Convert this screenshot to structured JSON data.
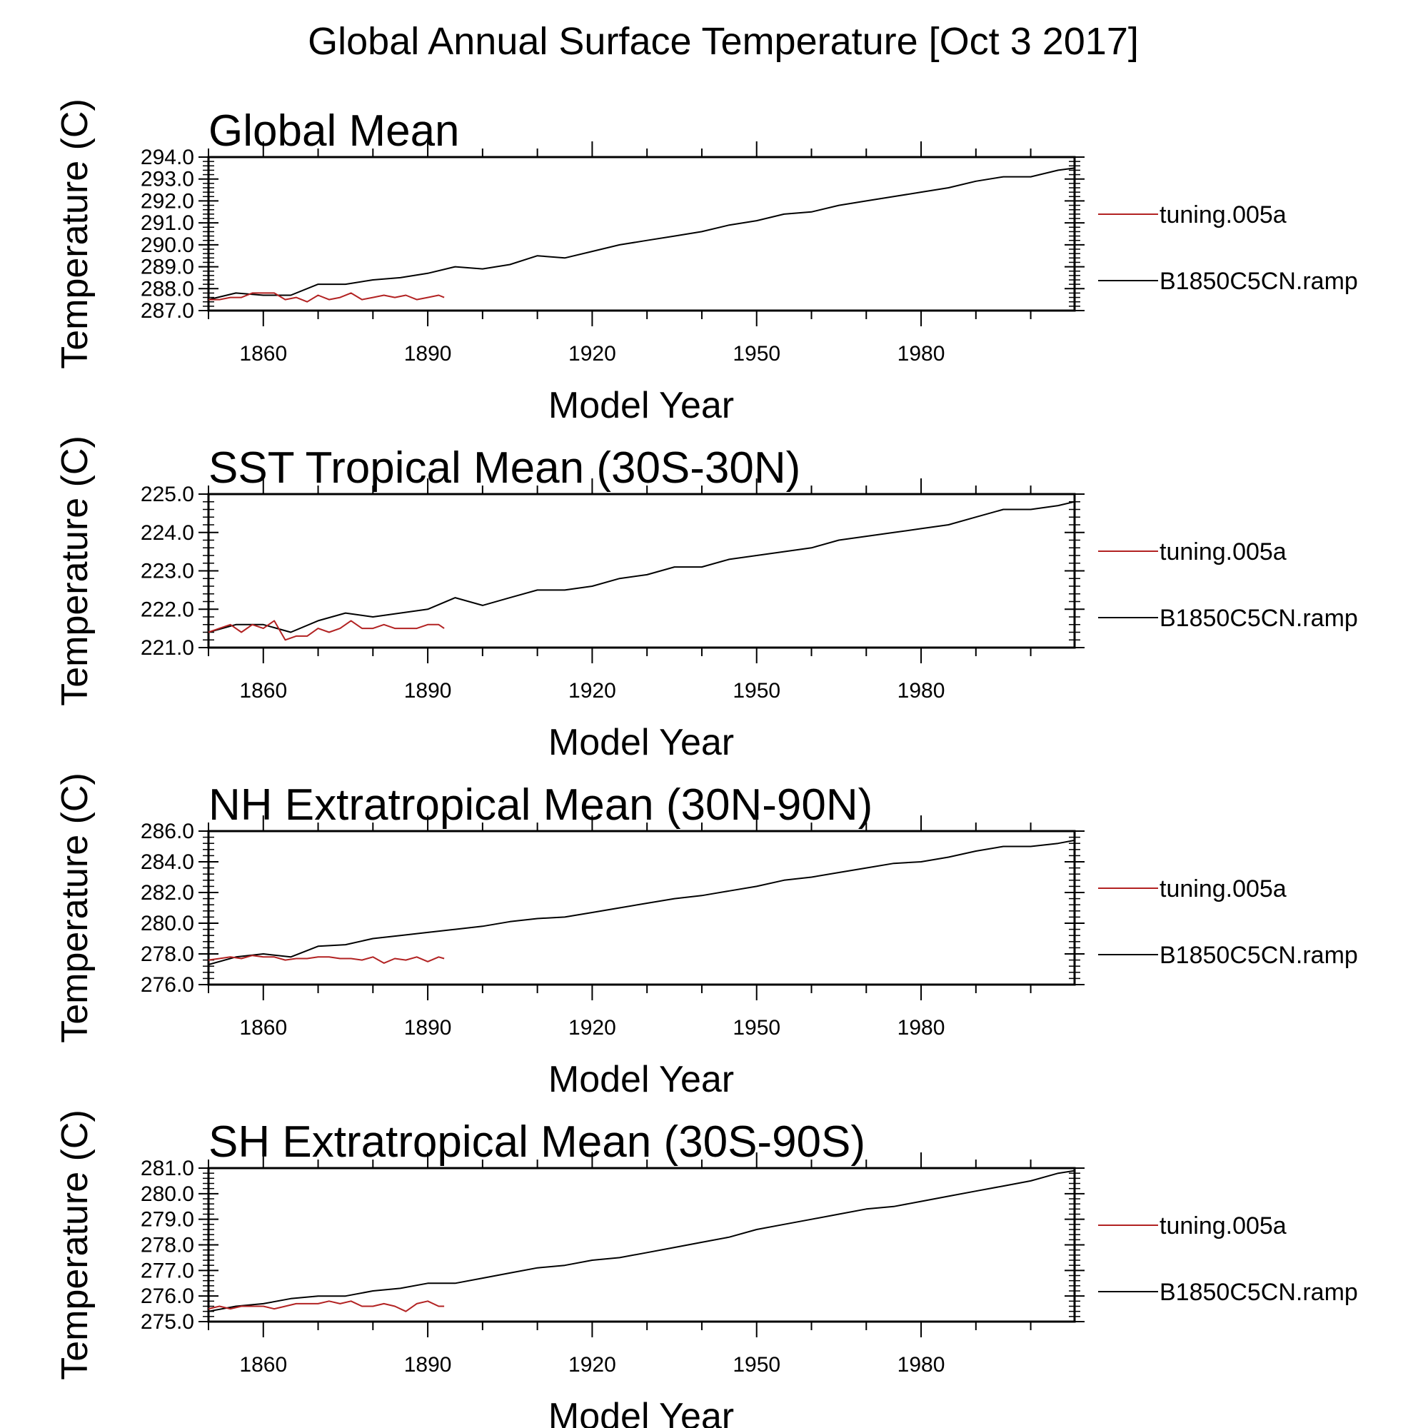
{
  "page_title": "Global Annual Surface Temperature [Oct  3 2017]",
  "colors": {
    "tuning.005a": "#b22222",
    "B1850C5CN.ramp": "#000000"
  },
  "chart_data": [
    {
      "type": "line",
      "title": "Global Mean",
      "xlabel": "Model Year",
      "ylabel": "Temperature (C)",
      "xlim": [
        1850,
        2008
      ],
      "ylim": [
        287.0,
        294.0
      ],
      "xticks": [
        1860,
        1890,
        1920,
        1950,
        1980
      ],
      "yticks": [
        "287.0",
        "288.0",
        "289.0",
        "290.0",
        "291.0",
        "292.0",
        "293.0",
        "294.0"
      ],
      "legend_position": "right",
      "series": [
        {
          "name": "tuning.005a",
          "x": [
            1850,
            1852,
            1854,
            1856,
            1858,
            1860,
            1862,
            1864,
            1866,
            1868,
            1870,
            1872,
            1874,
            1876,
            1878,
            1880,
            1882,
            1884,
            1886,
            1888,
            1890,
            1892,
            1893
          ],
          "y": [
            287.5,
            287.5,
            287.6,
            287.6,
            287.8,
            287.8,
            287.8,
            287.5,
            287.6,
            287.4,
            287.7,
            287.5,
            287.6,
            287.8,
            287.5,
            287.6,
            287.7,
            287.6,
            287.7,
            287.5,
            287.6,
            287.7,
            287.6
          ]
        },
        {
          "name": "B1850C5CN.ramp",
          "x": [
            1850,
            1855,
            1860,
            1865,
            1870,
            1875,
            1880,
            1885,
            1890,
            1895,
            1900,
            1905,
            1910,
            1915,
            1920,
            1925,
            1930,
            1935,
            1940,
            1945,
            1950,
            1955,
            1960,
            1965,
            1970,
            1975,
            1980,
            1985,
            1990,
            1995,
            2000,
            2005,
            2008
          ],
          "y": [
            287.5,
            287.8,
            287.7,
            287.7,
            288.2,
            288.2,
            288.4,
            288.5,
            288.7,
            289.0,
            288.9,
            289.1,
            289.5,
            289.4,
            289.7,
            290.0,
            290.2,
            290.4,
            290.6,
            290.9,
            291.1,
            291.4,
            291.5,
            291.8,
            292.0,
            292.2,
            292.4,
            292.6,
            292.9,
            293.1,
            293.1,
            293.4,
            293.5
          ]
        }
      ]
    },
    {
      "type": "line",
      "title": "SST Tropical Mean (30S-30N)",
      "xlabel": "Model Year",
      "ylabel": "Temperature (C)",
      "xlim": [
        1850,
        2008
      ],
      "ylim": [
        221.0,
        225.0
      ],
      "xticks": [
        1860,
        1890,
        1920,
        1950,
        1980
      ],
      "yticks": [
        "221.0",
        "222.0",
        "223.0",
        "224.0",
        "225.0"
      ],
      "legend_position": "right",
      "series": [
        {
          "name": "tuning.005a",
          "x": [
            1850,
            1852,
            1854,
            1856,
            1858,
            1860,
            1862,
            1864,
            1866,
            1868,
            1870,
            1872,
            1874,
            1876,
            1878,
            1880,
            1882,
            1884,
            1886,
            1888,
            1890,
            1892,
            1893
          ],
          "y": [
            221.4,
            221.5,
            221.6,
            221.4,
            221.6,
            221.5,
            221.7,
            221.2,
            221.3,
            221.3,
            221.5,
            221.4,
            221.5,
            221.7,
            221.5,
            221.5,
            221.6,
            221.5,
            221.5,
            221.5,
            221.6,
            221.6,
            221.5
          ]
        },
        {
          "name": "B1850C5CN.ramp",
          "x": [
            1850,
            1855,
            1860,
            1865,
            1870,
            1875,
            1880,
            1885,
            1890,
            1895,
            1900,
            1905,
            1910,
            1915,
            1920,
            1925,
            1930,
            1935,
            1940,
            1945,
            1950,
            1955,
            1960,
            1965,
            1970,
            1975,
            1980,
            1985,
            1990,
            1995,
            2000,
            2005,
            2008
          ],
          "y": [
            221.4,
            221.6,
            221.6,
            221.4,
            221.7,
            221.9,
            221.8,
            221.9,
            222.0,
            222.3,
            222.1,
            222.3,
            222.5,
            222.5,
            222.6,
            222.8,
            222.9,
            223.1,
            223.1,
            223.3,
            223.4,
            223.5,
            223.6,
            223.8,
            223.9,
            224.0,
            224.1,
            224.2,
            224.4,
            224.6,
            224.6,
            224.7,
            224.8
          ]
        }
      ]
    },
    {
      "type": "line",
      "title": "NH Extratropical Mean (30N-90N)",
      "xlabel": "Model Year",
      "ylabel": "Temperature (C)",
      "xlim": [
        1850,
        2008
      ],
      "ylim": [
        276.0,
        286.0
      ],
      "xticks": [
        1860,
        1890,
        1920,
        1950,
        1980
      ],
      "yticks": [
        "276.0",
        "278.0",
        "280.0",
        "282.0",
        "284.0",
        "286.0"
      ],
      "legend_position": "right",
      "series": [
        {
          "name": "tuning.005a",
          "x": [
            1850,
            1852,
            1854,
            1856,
            1858,
            1860,
            1862,
            1864,
            1866,
            1868,
            1870,
            1872,
            1874,
            1876,
            1878,
            1880,
            1882,
            1884,
            1886,
            1888,
            1890,
            1892,
            1893
          ],
          "y": [
            277.6,
            277.7,
            277.8,
            277.7,
            277.9,
            277.8,
            277.8,
            277.6,
            277.7,
            277.7,
            277.8,
            277.8,
            277.7,
            277.7,
            277.6,
            277.8,
            277.4,
            277.7,
            277.6,
            277.8,
            277.5,
            277.8,
            277.7
          ]
        },
        {
          "name": "B1850C5CN.ramp",
          "x": [
            1850,
            1855,
            1860,
            1865,
            1870,
            1875,
            1880,
            1885,
            1890,
            1895,
            1900,
            1905,
            1910,
            1915,
            1920,
            1925,
            1930,
            1935,
            1940,
            1945,
            1950,
            1955,
            1960,
            1965,
            1970,
            1975,
            1980,
            1985,
            1990,
            1995,
            2000,
            2005,
            2008
          ],
          "y": [
            277.3,
            277.8,
            278.0,
            277.8,
            278.5,
            278.6,
            279.0,
            279.2,
            279.4,
            279.6,
            279.8,
            280.1,
            280.3,
            280.4,
            280.7,
            281.0,
            281.3,
            281.6,
            281.8,
            282.1,
            282.4,
            282.8,
            283.0,
            283.3,
            283.6,
            283.9,
            284.0,
            284.3,
            284.7,
            285.0,
            285.0,
            285.2,
            285.4
          ]
        }
      ]
    },
    {
      "type": "line",
      "title": "SH Extratropical Mean (30S-90S)",
      "xlabel": "Model Year",
      "ylabel": "Temperature (C)",
      "xlim": [
        1850,
        2008
      ],
      "ylim": [
        275.0,
        281.0
      ],
      "xticks": [
        1860,
        1890,
        1920,
        1950,
        1980
      ],
      "yticks": [
        "275.0",
        "276.0",
        "277.0",
        "278.0",
        "279.0",
        "280.0",
        "281.0"
      ],
      "legend_position": "right",
      "series": [
        {
          "name": "tuning.005a",
          "x": [
            1850,
            1852,
            1854,
            1856,
            1858,
            1860,
            1862,
            1864,
            1866,
            1868,
            1870,
            1872,
            1874,
            1876,
            1878,
            1880,
            1882,
            1884,
            1886,
            1888,
            1890,
            1892,
            1893
          ],
          "y": [
            275.5,
            275.6,
            275.5,
            275.6,
            275.6,
            275.6,
            275.5,
            275.6,
            275.7,
            275.7,
            275.7,
            275.8,
            275.7,
            275.8,
            275.6,
            275.6,
            275.7,
            275.6,
            275.4,
            275.7,
            275.8,
            275.6,
            275.6
          ]
        },
        {
          "name": "B1850C5CN.ramp",
          "x": [
            1850,
            1855,
            1860,
            1865,
            1870,
            1875,
            1880,
            1885,
            1890,
            1895,
            1900,
            1905,
            1910,
            1915,
            1920,
            1925,
            1930,
            1935,
            1940,
            1945,
            1950,
            1955,
            1960,
            1965,
            1970,
            1975,
            1980,
            1985,
            1990,
            1995,
            2000,
            2005,
            2008
          ],
          "y": [
            275.4,
            275.6,
            275.7,
            275.9,
            276.0,
            276.0,
            276.2,
            276.3,
            276.5,
            276.5,
            276.7,
            276.9,
            277.1,
            277.2,
            277.4,
            277.5,
            277.7,
            277.9,
            278.1,
            278.3,
            278.6,
            278.8,
            279.0,
            279.2,
            279.4,
            279.5,
            279.7,
            279.9,
            280.1,
            280.3,
            280.5,
            280.8,
            280.9
          ]
        }
      ]
    }
  ]
}
